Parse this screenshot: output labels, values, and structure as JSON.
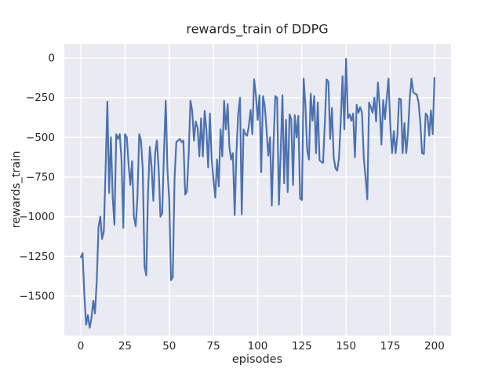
{
  "figure": {
    "background": "#ffffff",
    "plot_background": "#eaeaf2",
    "grid_color": "#ffffff",
    "text_color": "#262626"
  },
  "chart_data": {
    "type": "line",
    "title": "rewards_train of DDPG",
    "xlabel": "episodes",
    "ylabel": "rewards_train",
    "legend": "none",
    "grid": true,
    "line_color": "#4c72b0",
    "xlim": [
      -9.35,
      209.35
    ],
    "ylim": [
      -1750,
      89
    ],
    "xticks": [
      0,
      25,
      50,
      75,
      100,
      125,
      150,
      175,
      200
    ],
    "yticks": [
      0,
      -250,
      -500,
      -750,
      -1000,
      -1250,
      -1500
    ],
    "ytick_labels": [
      "0",
      "−250",
      "−500",
      "−750",
      "−1000",
      "−1250",
      "−1500"
    ],
    "x_start": 0,
    "x_step": 1,
    "series_name": "rewards_train",
    "values": [
      -1255,
      -1230,
      -1500,
      -1680,
      -1620,
      -1700,
      -1640,
      -1530,
      -1610,
      -1400,
      -1065,
      -1000,
      -1140,
      -1090,
      -700,
      -275,
      -850,
      -500,
      -880,
      -1050,
      -480,
      -510,
      -480,
      -640,
      -1070,
      -480,
      -500,
      -670,
      -800,
      -650,
      -1000,
      -1060,
      -880,
      -480,
      -520,
      -700,
      -1310,
      -1370,
      -850,
      -560,
      -680,
      -900,
      -600,
      -520,
      -700,
      -1000,
      -980,
      -600,
      -270,
      -700,
      -900,
      -1400,
      -1380,
      -750,
      -530,
      -520,
      -510,
      -530,
      -520,
      -860,
      -840,
      -600,
      -270,
      -335,
      -520,
      -400,
      -440,
      -620,
      -380,
      -620,
      -333,
      -450,
      -690,
      -350,
      -640,
      -760,
      -880,
      -640,
      -810,
      -450,
      -620,
      -270,
      -450,
      -290,
      -560,
      -640,
      -600,
      -990,
      -600,
      -350,
      -250,
      -985,
      -450,
      -480,
      -490,
      -430,
      -327,
      -480,
      -135,
      -230,
      -390,
      -235,
      -720,
      -240,
      -300,
      -450,
      -615,
      -500,
      -930,
      -525,
      -240,
      -250,
      -925,
      -600,
      -235,
      -790,
      -390,
      -845,
      -355,
      -385,
      -800,
      -360,
      -500,
      -365,
      -885,
      -895,
      -130,
      -300,
      -580,
      -640,
      -225,
      -395,
      -240,
      -600,
      -280,
      -645,
      -655,
      -660,
      -400,
      -135,
      -150,
      -510,
      -315,
      -625,
      -695,
      -710,
      -630,
      -400,
      -115,
      -450,
      -5,
      -380,
      -355,
      -395,
      -350,
      -625,
      -295,
      -345,
      -310,
      -345,
      -630,
      -750,
      -890,
      -280,
      -310,
      -345,
      -250,
      -400,
      -155,
      -300,
      -545,
      -265,
      -385,
      -250,
      -130,
      -425,
      -600,
      -460,
      -600,
      -490,
      -255,
      -260,
      -600,
      -410,
      -600,
      -475,
      -255,
      -130,
      -215,
      -225,
      -230,
      -280,
      -410,
      -600,
      -605,
      -350,
      -365,
      -490,
      -330,
      -480,
      -125
    ]
  }
}
